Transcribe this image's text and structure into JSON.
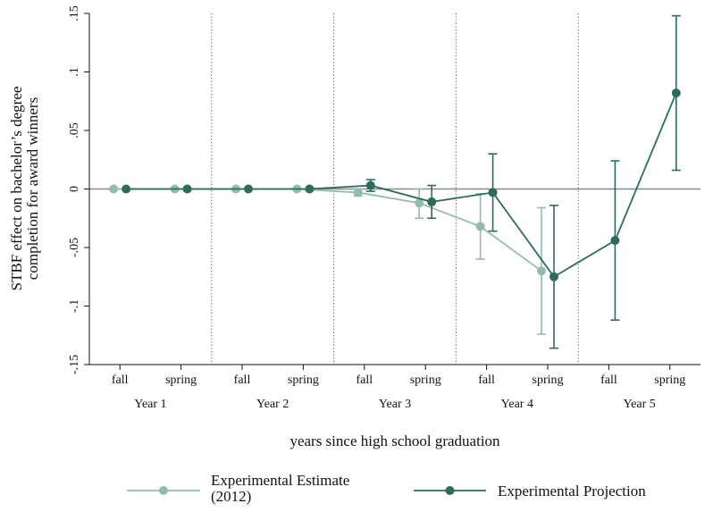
{
  "chart_data": {
    "type": "line",
    "ylabel_lines": [
      "STBF effect on bachelor’s degree",
      "completion for award winners"
    ],
    "xlabel": "years since high school graduation",
    "ylim": [
      -0.15,
      0.15
    ],
    "y_ticks": [
      {
        "value": -0.15,
        "label": "-.15"
      },
      {
        "value": -0.1,
        "label": "-.1"
      },
      {
        "value": -0.05,
        "label": "-.05"
      },
      {
        "value": 0,
        "label": "0"
      },
      {
        "value": 0.05,
        "label": ".05"
      },
      {
        "value": 0.1,
        "label": ".1"
      },
      {
        "value": 0.15,
        "label": ".15"
      }
    ],
    "categories": [
      "fall",
      "spring",
      "fall",
      "spring",
      "fall",
      "spring",
      "fall",
      "spring",
      "fall",
      "spring"
    ],
    "groups": [
      "Year 1",
      "Year 2",
      "Year 3",
      "Year 4",
      "Year 5"
    ],
    "zero_line": 0,
    "series": [
      {
        "name": "Experimental Estimate (2012)",
        "legend_lines": [
          "Experimental Estimate",
          "(2012)"
        ],
        "color": "#94bcae",
        "values": [
          0,
          0,
          0,
          0,
          -0.003,
          -0.012,
          -0.032,
          -0.07,
          null,
          null
        ],
        "ci_low": [
          null,
          null,
          null,
          null,
          -0.006,
          -0.025,
          -0.06,
          -0.124,
          null,
          null
        ],
        "ci_high": [
          null,
          null,
          null,
          null,
          0,
          0,
          -0.004,
          -0.016,
          null,
          null
        ]
      },
      {
        "name": "Experimental Projection",
        "legend_lines": [
          "Experimental Projection"
        ],
        "color": "#2e6b5e",
        "values": [
          0,
          0,
          0,
          0,
          0.003,
          -0.011,
          -0.003,
          -0.075,
          -0.044,
          0.082
        ],
        "ci_low": [
          null,
          null,
          null,
          null,
          -0.002,
          -0.025,
          -0.036,
          -0.136,
          -0.112,
          0.016
        ],
        "ci_high": [
          null,
          null,
          null,
          null,
          0.008,
          0.003,
          0.03,
          -0.014,
          0.024,
          0.148
        ]
      }
    ]
  }
}
